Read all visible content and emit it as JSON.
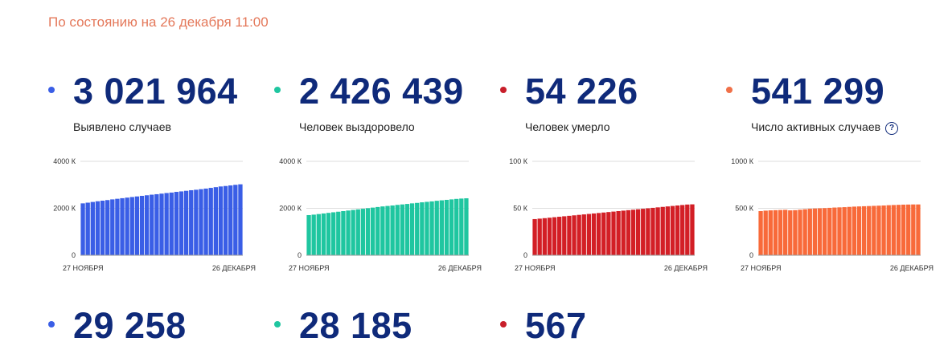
{
  "status_line": "По состоянию на 26 декабря 11:00",
  "help_glyph": "?",
  "cards": [
    {
      "value": "3 021 964",
      "label": "Выявлено случаев",
      "color": "#3a5ee6",
      "dot_color": "#3a5ee6",
      "chart_data": {
        "type": "bar",
        "x_start_label": "27 НОЯБРЯ",
        "x_end_label": "26 ДЕКАБРЯ",
        "yticks": [
          "0",
          "2000 К",
          "4000 К"
        ],
        "ytick_values": [
          0,
          2000,
          4000
        ],
        "ylim": [
          0,
          4000
        ],
        "values": [
          2210,
          2240,
          2270,
          2300,
          2325,
          2350,
          2380,
          2405,
          2430,
          2455,
          2480,
          2505,
          2530,
          2555,
          2580,
          2600,
          2625,
          2650,
          2670,
          2700,
          2720,
          2745,
          2770,
          2790,
          2815,
          2840,
          2870,
          2900,
          2930,
          2950,
          2975,
          3000,
          3022
        ]
      }
    },
    {
      "value": "2 426 439",
      "label": "Человек выздоровело",
      "color": "#1fc6a0",
      "dot_color": "#1fc6a0",
      "chart_data": {
        "type": "bar",
        "x_start_label": "27 НОЯБРЯ",
        "x_end_label": "26 ДЕКАБРЯ",
        "yticks": [
          "0",
          "2000 К",
          "4000 К"
        ],
        "ytick_values": [
          0,
          2000,
          4000
        ],
        "ylim": [
          0,
          4000
        ],
        "values": [
          1710,
          1730,
          1755,
          1780,
          1805,
          1830,
          1855,
          1880,
          1905,
          1930,
          1955,
          1980,
          2005,
          2030,
          2055,
          2080,
          2100,
          2120,
          2145,
          2165,
          2185,
          2210,
          2230,
          2255,
          2275,
          2295,
          2320,
          2340,
          2360,
          2380,
          2400,
          2415,
          2426
        ]
      }
    },
    {
      "value": "54 226",
      "label": "Человек умерло",
      "color": "#d31f26",
      "dot_color": "#c81e2a",
      "chart_data": {
        "type": "bar",
        "x_start_label": "27 НОЯБРЯ",
        "x_end_label": "26 ДЕКАБРЯ",
        "yticks": [
          "0",
          "50 К",
          "100 К"
        ],
        "ytick_values": [
          0,
          50,
          100
        ],
        "ylim": [
          0,
          100
        ],
        "values": [
          38.5,
          39.0,
          39.5,
          40.0,
          40.5,
          41.0,
          41.5,
          42.0,
          42.5,
          43.0,
          43.5,
          44.0,
          44.5,
          45.0,
          45.5,
          46.0,
          46.5,
          47.0,
          47.5,
          48.0,
          48.5,
          49.0,
          49.5,
          50.0,
          50.5,
          51.0,
          51.5,
          52.0,
          52.5,
          53.0,
          53.5,
          54.0,
          54.2
        ]
      }
    },
    {
      "value": "541 299",
      "label": "Число активных случаев",
      "color": "#f86a3a",
      "dot_color": "#f07048",
      "has_help": true,
      "chart_data": {
        "type": "bar",
        "x_start_label": "27 НОЯБРЯ",
        "x_end_label": "26 ДЕКАБРЯ",
        "yticks": [
          "0",
          "500 К",
          "1000 К"
        ],
        "ytick_values": [
          0,
          500,
          1000
        ],
        "ylim": [
          0,
          1000
        ],
        "values": [
          470,
          475,
          478,
          480,
          482,
          484,
          478,
          480,
          485,
          490,
          495,
          498,
          500,
          502,
          505,
          508,
          510,
          512,
          515,
          518,
          520,
          522,
          524,
          526,
          528,
          530,
          533,
          535,
          537,
          539,
          540,
          541,
          541
        ]
      }
    }
  ],
  "bottom_cards": [
    {
      "value": "29 258",
      "color": "#3a5ee6"
    },
    {
      "value": "28 185",
      "color": "#1fc6a0"
    },
    {
      "value": "567",
      "color": "#c81e2a"
    }
  ]
}
